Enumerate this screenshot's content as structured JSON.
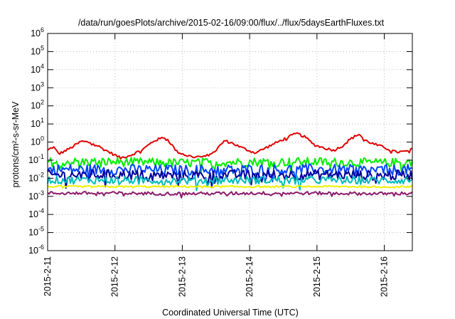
{
  "chart_data": {
    "type": "line",
    "title": "/data/run/goesPlots/archive/2015-02-16/09:00/flux/../flux/5daysEarthFluxes.txt",
    "xlabel": "Coordinated Universal Time (UTC)",
    "ylabel": "protons/cm²-s-sr-MeV",
    "x_range": [
      "2015-02-11",
      "2015-02-16T10:00"
    ],
    "x_ticks": [
      "2015-2-11",
      "2015-2-12",
      "2015-2-13",
      "2015-2-14",
      "2015-2-15",
      "2015-2-16"
    ],
    "y_scale": "log",
    "ylim": [
      1e-06,
      1000000.0
    ],
    "y_ticks": [
      {
        "value": 1e-06,
        "base": "10",
        "exp": "-6"
      },
      {
        "value": 1e-05,
        "base": "10",
        "exp": "-5"
      },
      {
        "value": 0.0001,
        "base": "10",
        "exp": "-4"
      },
      {
        "value": 0.001,
        "base": "10",
        "exp": "-3"
      },
      {
        "value": 0.01,
        "base": "10",
        "exp": "-2"
      },
      {
        "value": 0.1,
        "base": "10",
        "exp": "-1"
      },
      {
        "value": 1.0,
        "base": "10",
        "exp": "0"
      },
      {
        "value": 10.0,
        "base": "10",
        "exp": "1"
      },
      {
        "value": 100.0,
        "base": "10",
        "exp": "2"
      },
      {
        "value": 1000.0,
        "base": "10",
        "exp": "3"
      },
      {
        "value": 10000.0,
        "base": "10",
        "exp": "4"
      },
      {
        "value": 100000.0,
        "base": "10",
        "exp": "5"
      },
      {
        "value": 1000000.0,
        "base": "10",
        "exp": "6"
      }
    ],
    "grid": true,
    "series": [
      {
        "color": "#e00000",
        "width": 2,
        "noise": 0.07,
        "values": [
          [
            "2015-02-11T00:00",
            0.35
          ],
          [
            "2015-02-11T02:00",
            0.55
          ],
          [
            "2015-02-11T04:00",
            0.22
          ],
          [
            "2015-02-11T08:00",
            0.45
          ],
          [
            "2015-02-11T12:00",
            1.1
          ],
          [
            "2015-02-11T16:00",
            0.9
          ],
          [
            "2015-02-11T20:00",
            0.4
          ],
          [
            "2015-02-12T02:00",
            0.13
          ],
          [
            "2015-02-12T06:00",
            0.2
          ],
          [
            "2015-02-12T10:00",
            0.4
          ],
          [
            "2015-02-12T14:00",
            1.2
          ],
          [
            "2015-02-12T18:00",
            1.9
          ],
          [
            "2015-02-12T20:00",
            0.8
          ],
          [
            "2015-02-12T22:00",
            0.3
          ],
          [
            "2015-02-13T02:00",
            0.17
          ],
          [
            "2015-02-13T08:00",
            0.15
          ],
          [
            "2015-02-13T12:00",
            0.35
          ],
          [
            "2015-02-13T15:00",
            1.2
          ],
          [
            "2015-02-13T18:00",
            0.85
          ],
          [
            "2015-02-13T21:00",
            0.5
          ],
          [
            "2015-02-14T02:00",
            0.25
          ],
          [
            "2015-02-14T06:00",
            0.5
          ],
          [
            "2015-02-14T10:00",
            1.0
          ],
          [
            "2015-02-14T14:00",
            2.0
          ],
          [
            "2015-02-14T17:00",
            3.0
          ],
          [
            "2015-02-14T20:00",
            1.8
          ],
          [
            "2015-02-14T23:00",
            0.7
          ],
          [
            "2015-02-15T03:00",
            0.45
          ],
          [
            "2015-02-15T06:00",
            0.35
          ],
          [
            "2015-02-15T09:00",
            0.6
          ],
          [
            "2015-02-15T12:00",
            1.5
          ],
          [
            "2015-02-15T15:00",
            2.8
          ],
          [
            "2015-02-15T17:00",
            1.3
          ],
          [
            "2015-02-15T20:00",
            0.8
          ],
          [
            "2015-02-16T00:00",
            0.5
          ],
          [
            "2015-02-16T04:00",
            0.28
          ],
          [
            "2015-02-16T08:00",
            0.3
          ],
          [
            "2015-02-16T10:00",
            0.4
          ]
        ]
      },
      {
        "color": "#00ee00",
        "width": 2,
        "noise": 0.25,
        "values": [
          [
            "2015-02-11T00:00",
            0.08
          ],
          [
            "2015-02-12T00:00",
            0.08
          ],
          [
            "2015-02-13T00:00",
            0.07
          ],
          [
            "2015-02-14T00:00",
            0.08
          ],
          [
            "2015-02-15T00:00",
            0.08
          ],
          [
            "2015-02-16T00:00",
            0.07
          ],
          [
            "2015-02-16T10:00",
            0.08
          ]
        ]
      },
      {
        "color": "#0044ff",
        "width": 2,
        "noise": 0.3,
        "values": [
          [
            "2015-02-11T00:00",
            0.03
          ],
          [
            "2015-02-12T00:00",
            0.03
          ],
          [
            "2015-02-13T00:00",
            0.028
          ],
          [
            "2015-02-14T00:00",
            0.03
          ],
          [
            "2015-02-15T00:00",
            0.03
          ],
          [
            "2015-02-16T00:00",
            0.028
          ],
          [
            "2015-02-16T10:00",
            0.03
          ]
        ]
      },
      {
        "color": "#000099",
        "width": 2,
        "noise": 0.28,
        "values": [
          [
            "2015-02-11T00:00",
            0.015
          ],
          [
            "2015-02-12T00:00",
            0.016
          ],
          [
            "2015-02-13T00:00",
            0.014
          ],
          [
            "2015-02-14T00:00",
            0.015
          ],
          [
            "2015-02-15T00:00",
            0.016
          ],
          [
            "2015-02-16T00:00",
            0.014
          ],
          [
            "2015-02-16T10:00",
            0.015
          ]
        ]
      },
      {
        "color": "#00bbbb",
        "width": 2,
        "noise": 0.22,
        "values": [
          [
            "2015-02-11T00:00",
            0.008
          ],
          [
            "2015-02-12T00:00",
            0.008
          ],
          [
            "2015-02-13T00:00",
            0.0075
          ],
          [
            "2015-02-14T00:00",
            0.008
          ],
          [
            "2015-02-15T00:00",
            0.008
          ],
          [
            "2015-02-16T00:00",
            0.0075
          ],
          [
            "2015-02-16T10:00",
            0.008
          ]
        ]
      },
      {
        "color": "#f0f000",
        "width": 2,
        "noise": 0.05,
        "values": [
          [
            "2015-02-11T00:00",
            0.0035
          ],
          [
            "2015-02-12T00:00",
            0.0034
          ],
          [
            "2015-02-13T00:00",
            0.0035
          ],
          [
            "2015-02-14T00:00",
            0.0034
          ],
          [
            "2015-02-15T00:00",
            0.0035
          ],
          [
            "2015-02-16T00:00",
            0.0034
          ],
          [
            "2015-02-16T10:00",
            0.0035
          ]
        ]
      },
      {
        "color": "#8b1a6b",
        "width": 2,
        "noise": 0.09,
        "values": [
          [
            "2015-02-11T00:00",
            0.0015
          ],
          [
            "2015-02-12T00:00",
            0.0015
          ],
          [
            "2015-02-13T00:00",
            0.0014
          ],
          [
            "2015-02-14T00:00",
            0.0015
          ],
          [
            "2015-02-15T00:00",
            0.0015
          ],
          [
            "2015-02-16T00:00",
            0.0014
          ],
          [
            "2015-02-16T10:00",
            0.0015
          ]
        ]
      }
    ]
  }
}
